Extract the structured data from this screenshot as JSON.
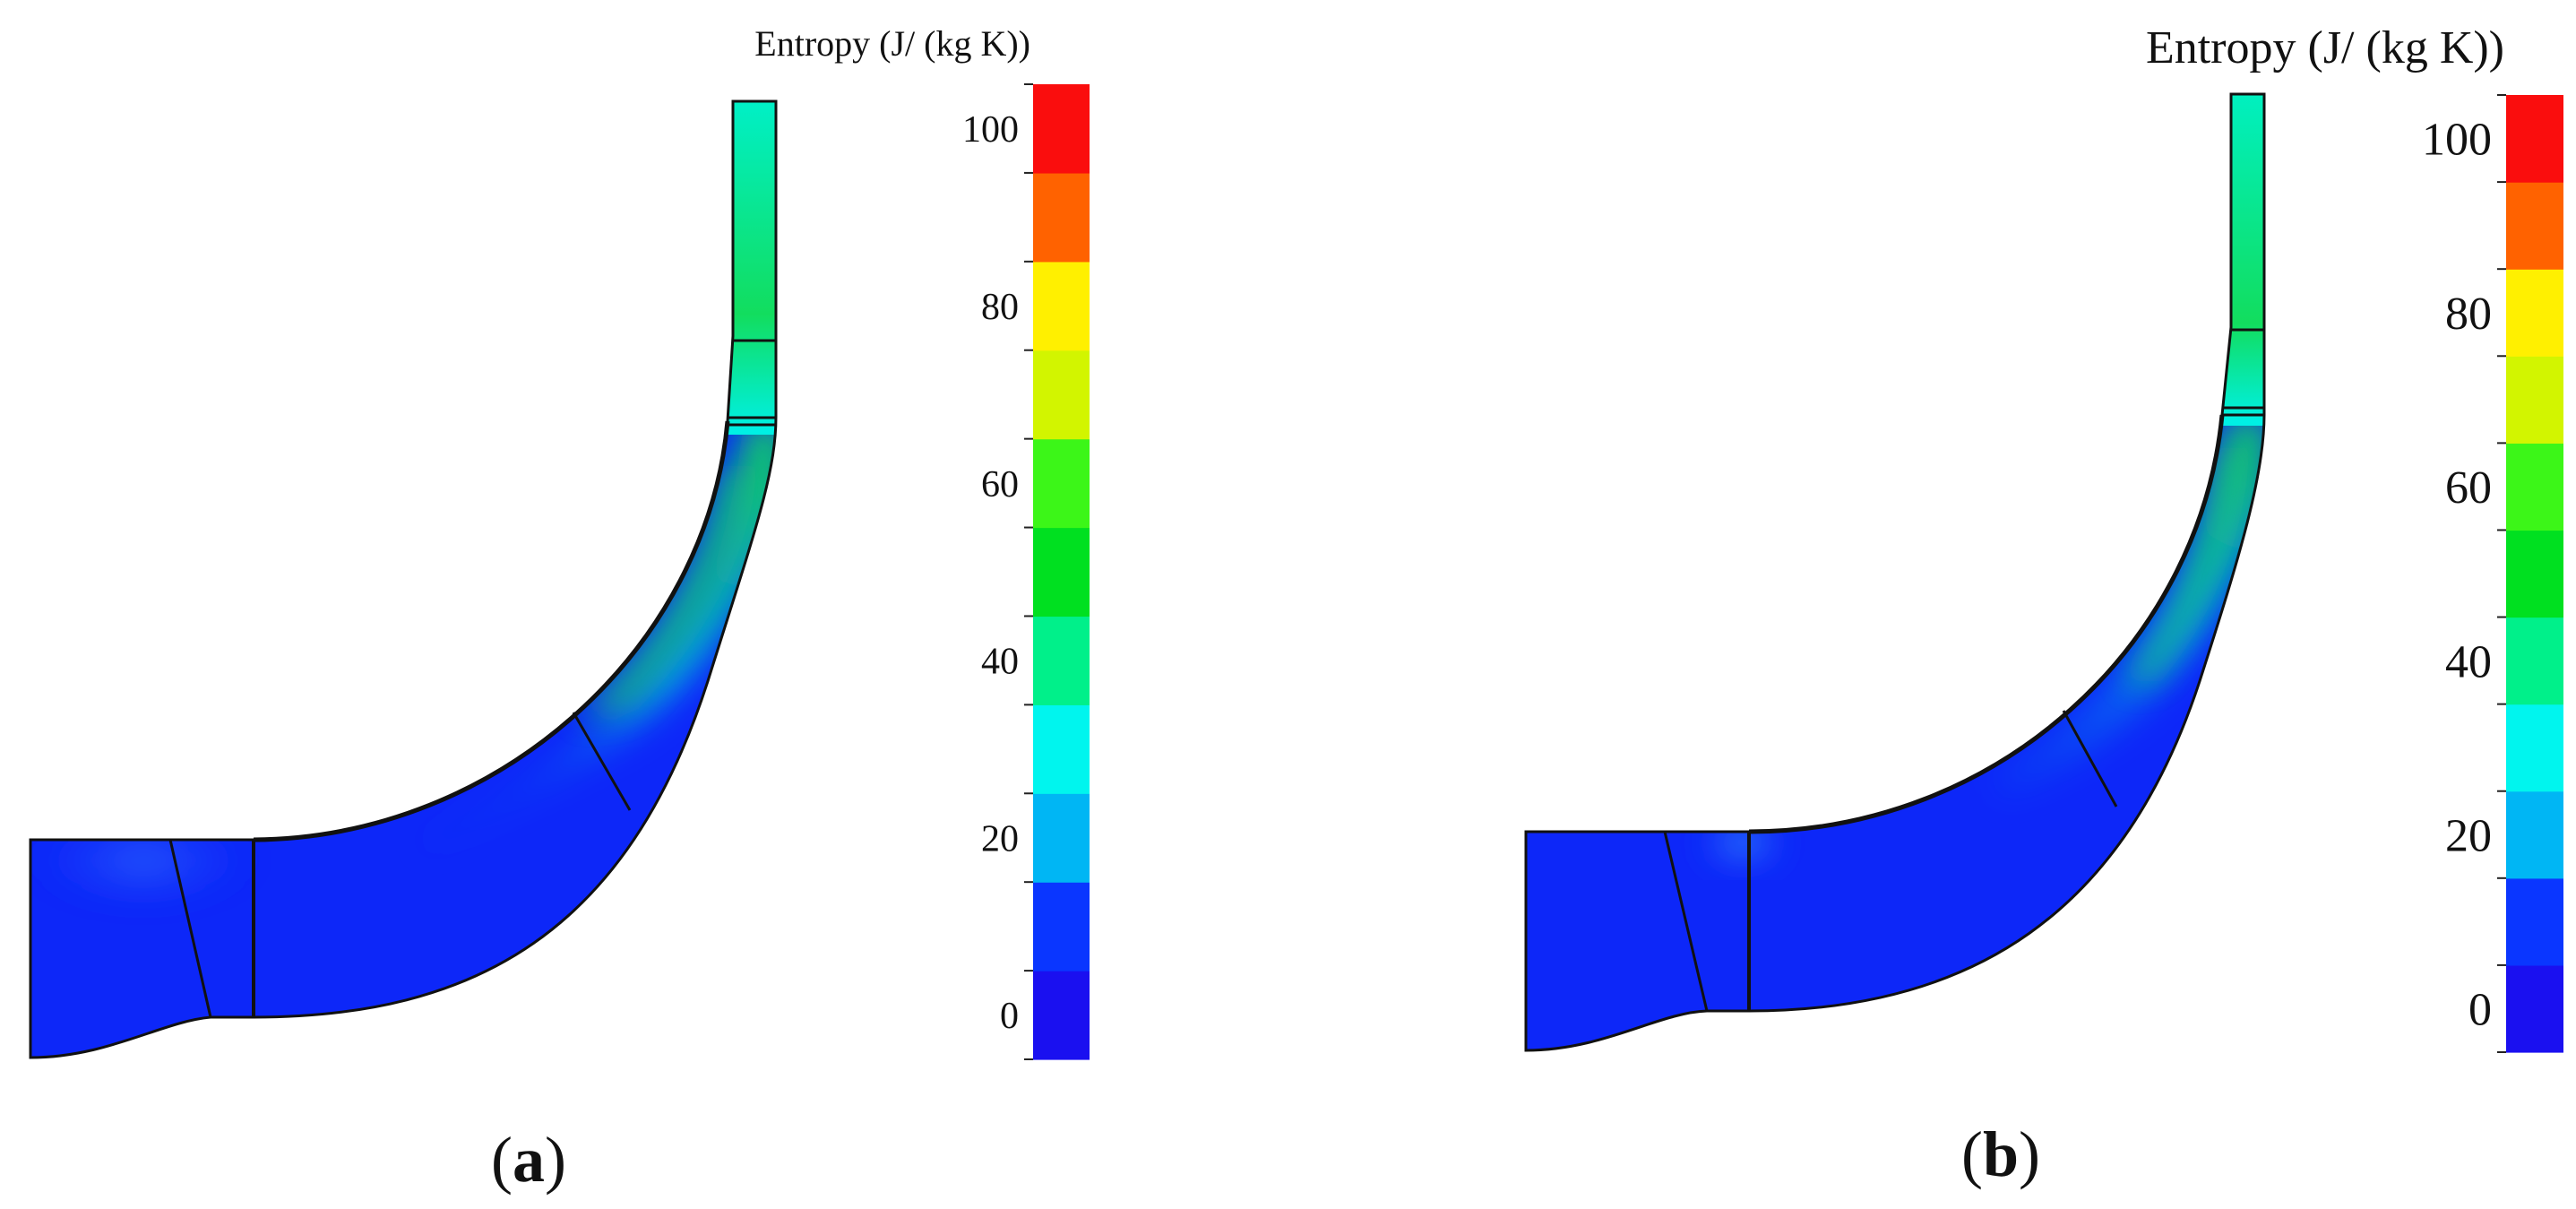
{
  "panels": [
    {
      "caption_letter": "a",
      "colorbar": {
        "title": "Entropy (J/ (kg K))",
        "ticks": [
          "0",
          "20",
          "40",
          "60",
          "80",
          "100"
        ]
      }
    },
    {
      "caption_letter": "b",
      "colorbar": {
        "title": "Entropy (J/ (kg K))",
        "ticks": [
          "0",
          "20",
          "40",
          "60",
          "80",
          "100"
        ]
      }
    }
  ],
  "palette": [
    "#1a10f0",
    "#0a36ff",
    "#00b6f4",
    "#00f5ee",
    "#00f08a",
    "#00e020",
    "#3cf618",
    "#d2f500",
    "#fff000",
    "#ff6200",
    "#fa0d0d"
  ],
  "contour_colors": {
    "low": "#0d27f8",
    "mid": "#00f0e4",
    "high": "#12dd5e"
  }
}
